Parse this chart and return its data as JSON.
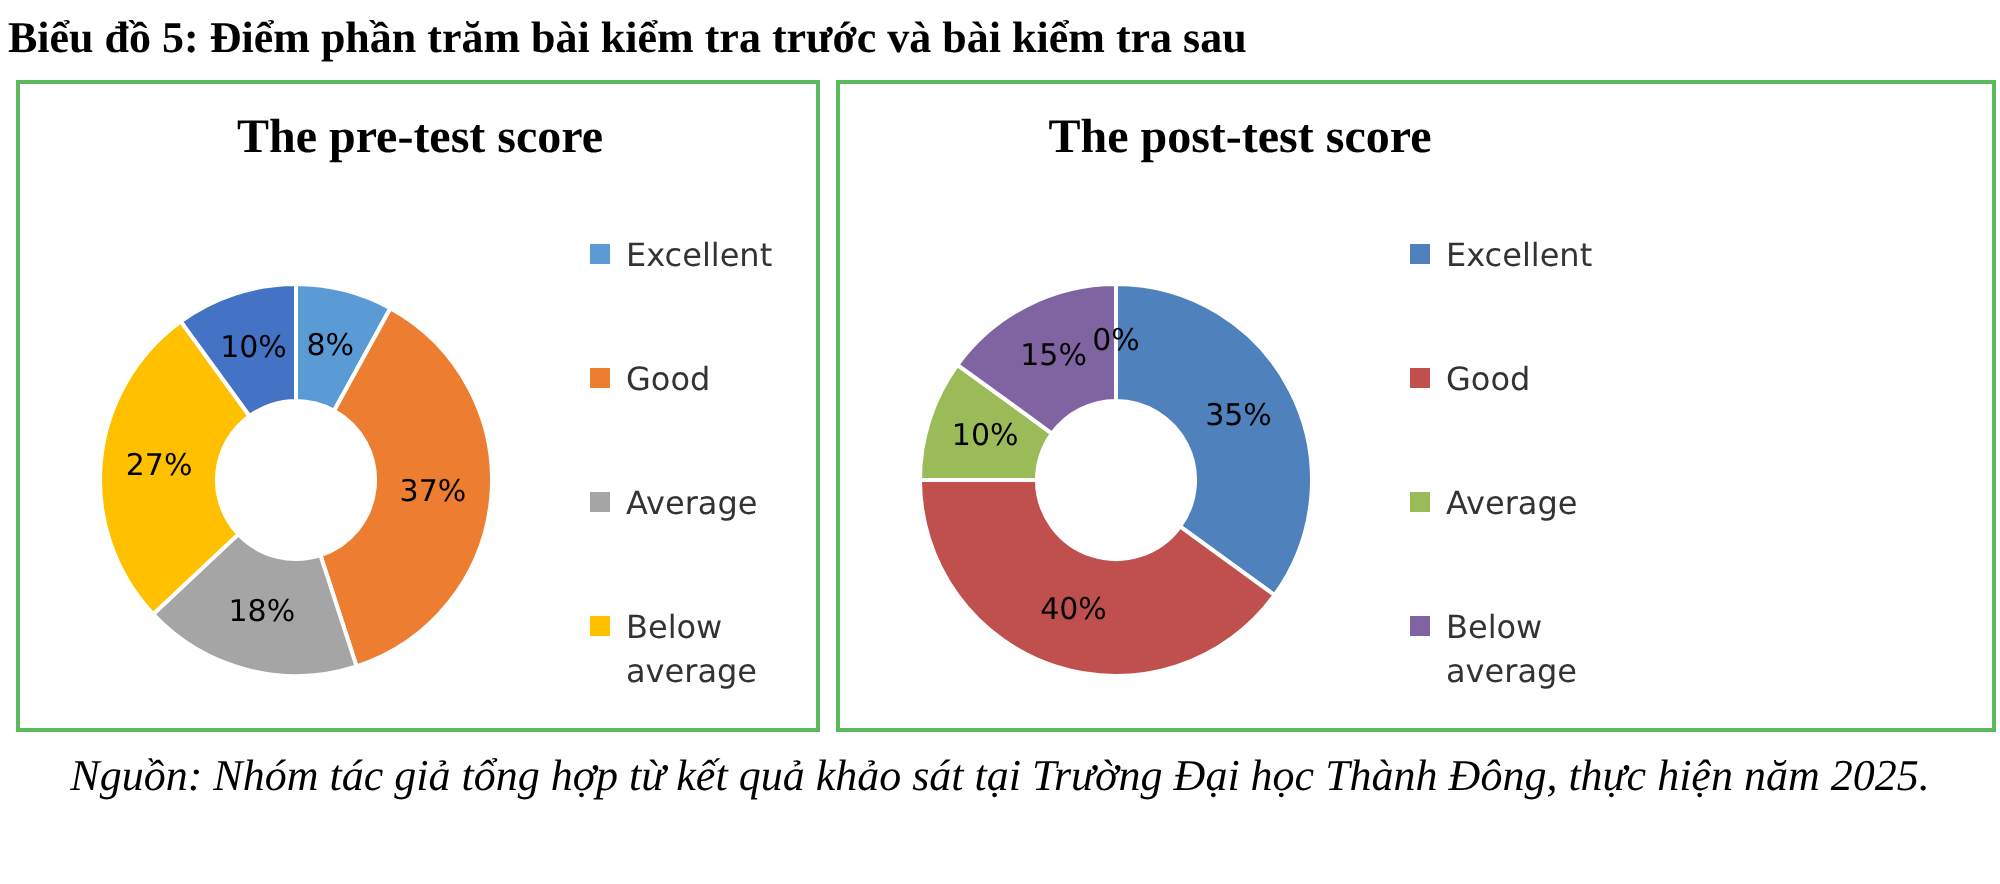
{
  "chart_data": [
    {
      "type": "donut",
      "title": "The pre-test score",
      "categories": [
        "Excellent",
        "Good",
        "Average",
        "Below average",
        null
      ],
      "values": [
        8,
        37,
        18,
        27,
        10
      ],
      "value_labels": [
        "8%",
        "37%",
        "18%",
        "27%",
        "10%"
      ],
      "colors": [
        "#5b9bd5",
        "#ed7d31",
        "#a5a5a5",
        "#ffc000",
        "#4472c4"
      ],
      "legend": "right",
      "annotations": [
        "Biểu đồ 5: Điểm phần trăm bài kiểm tra trước và bài kiểm tra sau",
        "Nguồn: Nhóm tác giả tổng hợp từ kết quả khảo sát tại Trường Đại học Thành Đông, thực hiện năm 2025."
      ]
    },
    {
      "type": "donut",
      "title": "The post-test score",
      "categories": [
        "Excellent",
        "Good",
        "Average",
        "Below average",
        null
      ],
      "values": [
        35,
        40,
        10,
        15,
        0
      ],
      "value_labels": [
        "35%",
        "40%",
        "10%",
        "15%",
        "0%"
      ],
      "colors": [
        "#4f81bd",
        "#c0504d",
        "#9bbb59",
        "#8064a2",
        "#4bacc6"
      ],
      "legend": "right"
    }
  ]
}
